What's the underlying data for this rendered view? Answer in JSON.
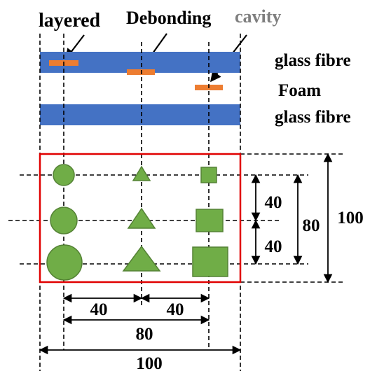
{
  "labels": {
    "layered": "layered",
    "debonding": "Debonding",
    "cavity": "cavity",
    "layer_top": "glass fibre",
    "layer_middle": "Foam",
    "layer_bottom": "glass fibre"
  },
  "dimensions": {
    "horizontal_gap_1": "40",
    "horizontal_gap_2": "40",
    "horizontal_span": "80",
    "horizontal_total": "100",
    "vertical_gap_1": "40",
    "vertical_gap_2": "40",
    "vertical_span": "80",
    "vertical_total": "100"
  },
  "colors": {
    "glass_fibre": "#4472c4",
    "defect": "#ed7d31",
    "shape_fill": "#70ad47",
    "shape_stroke": "#548235",
    "panel_border": "#e00000",
    "cavity_label": "#7f7f7f"
  }
}
